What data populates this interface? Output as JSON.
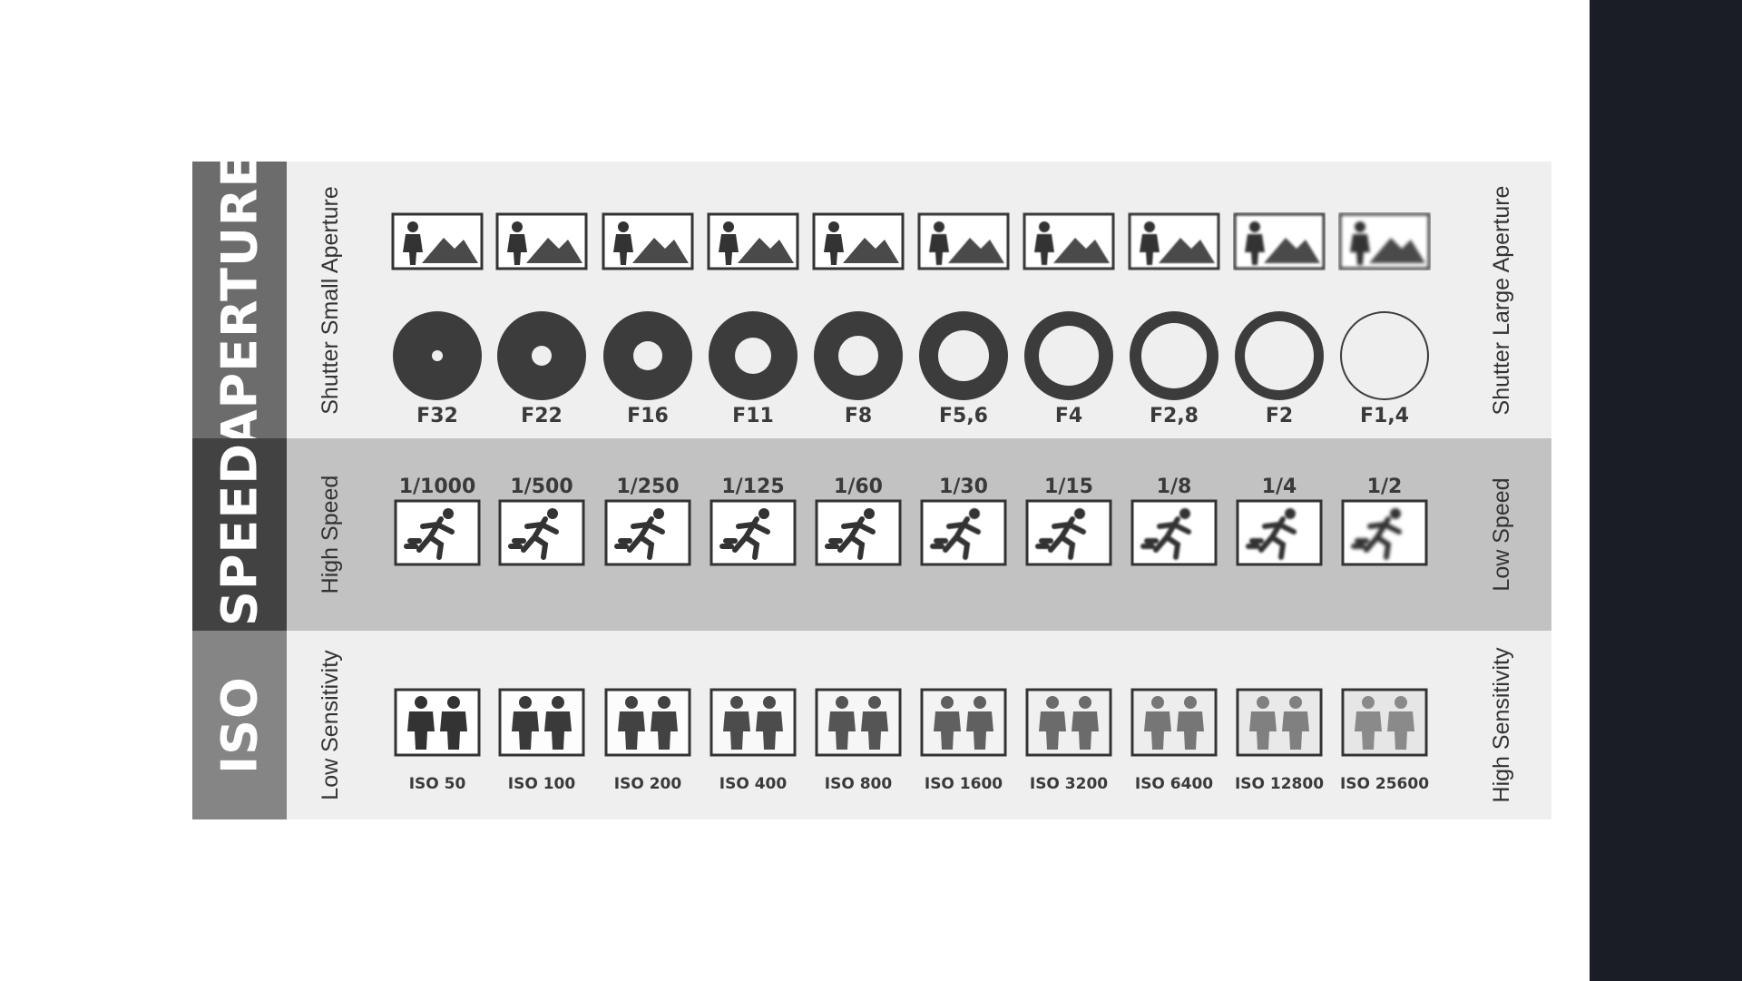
{
  "aperture": {
    "title": "APERTURE",
    "left_label": "Shutter Small Aperture",
    "right_label": "Shutter Large Aperture",
    "scene_icon": "person-mountain-icon",
    "ring_icon": "aperture-ring-icon",
    "stops": [
      "F32",
      "F22",
      "F16",
      "F11",
      "F8",
      "F5,6",
      "F4",
      "F2,8",
      "F2",
      "F1,4"
    ]
  },
  "speed": {
    "title": "SPEED",
    "left_label": "High Speed",
    "right_label": "Low Speed",
    "icon": "running-person-icon",
    "stops": [
      "1/1000",
      "1/500",
      "1/250",
      "1/125",
      "1/60",
      "1/30",
      "1/15",
      "1/8",
      "1/4",
      "1/2"
    ]
  },
  "iso": {
    "title": "ISO",
    "left_label": "Low Sensitivity",
    "right_label": "High Sensitivity",
    "icon": "two-people-icon",
    "stops": [
      "ISO 50",
      "ISO 100",
      "ISO 200",
      "ISO 400",
      "ISO 800",
      "ISO 1600",
      "ISO 3200",
      "ISO 6400",
      "ISO 12800",
      "ISO 25600"
    ]
  },
  "colors": {
    "aperture_bar": "#6c6c6c",
    "speed_bar": "#424242",
    "iso_bar": "#858585",
    "speed_band": "#c2c2c2",
    "panel": "#efefef",
    "dark_side": "#1a1d26"
  }
}
